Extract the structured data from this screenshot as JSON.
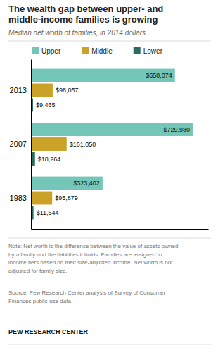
{
  "chart_data": {
    "type": "bar",
    "orientation": "horizontal",
    "title": "The wealth gap between upper- and\nmiddle-income families is growing",
    "subtitle": "Median net worth of families, in 2014 dollars",
    "categories": [
      "2013",
      "2007",
      "1983"
    ],
    "series": [
      {
        "name": "Upper",
        "color": "#74C6B8",
        "values": [
          650074,
          729980,
          323402
        ],
        "value_labels": [
          "$650,074",
          "$729,980",
          "$323,402"
        ]
      },
      {
        "name": "Middle",
        "color": "#C9A227",
        "values": [
          98057,
          161050,
          95879
        ],
        "value_labels": [
          "$98,057",
          "$161,050",
          "$95,879"
        ]
      },
      {
        "name": "Lower",
        "color": "#2D6B5E",
        "values": [
          9465,
          18264,
          11544
        ],
        "value_labels": [
          "$9,465",
          "$18,264",
          "$11,544"
        ]
      }
    ],
    "xlim": [
      0,
      800000
    ],
    "data_labels": true,
    "tick_labels": "y",
    "grid": false,
    "legend": "top",
    "annotations": [
      "Note: Net worth is the difference between the value of assets owned\nby a family and the liabilities it holds. Families are assigned to\nincome tiers based on their size-adjusted income. Net worth is not\nadjusted for family size.",
      "Source: Pew Research Center analysis of Survey of Consumer\nFinances public-use data",
      "PEW RESEARCH CENTER"
    ]
  }
}
